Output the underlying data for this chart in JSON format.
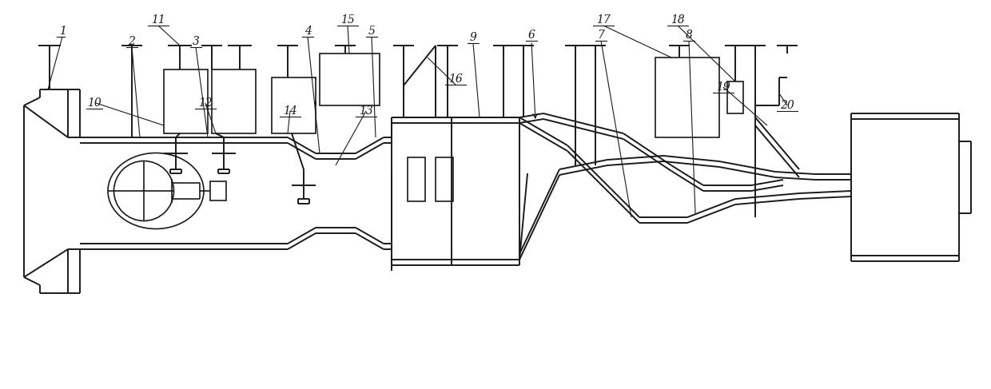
{
  "bg_color": "#ffffff",
  "line_color": "#1a1a1a",
  "fig_width": 12.4,
  "fig_height": 4.87,
  "dpi": 100
}
